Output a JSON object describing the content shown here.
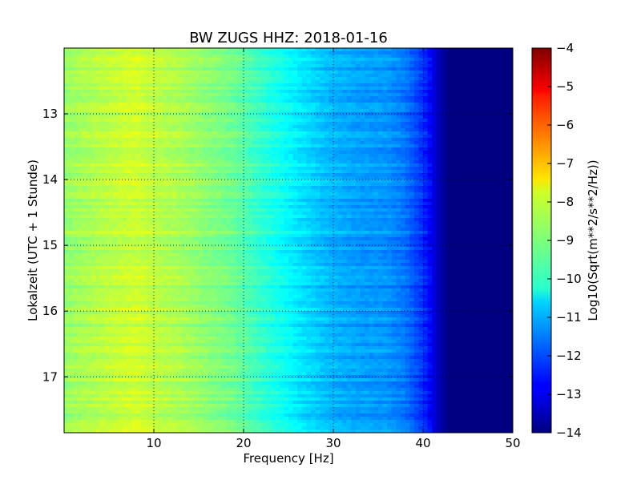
{
  "chart_data": {
    "type": "heatmap",
    "title": "BW ZUGS HHZ: 2018-01-16",
    "xlabel": "Frequency [Hz]",
    "ylabel": "Lokalzeit (UTC + 1 Stunde)",
    "colorbar_label": "Log10(Sqrt(m**2/s**2/Hz))",
    "xlim": [
      0,
      50
    ],
    "ylim": [
      12.0,
      17.85
    ],
    "y_inverted": true,
    "clim": [
      -14,
      -4
    ],
    "colormap": "jet",
    "grid": true,
    "x_ticks": [
      10,
      20,
      30,
      40,
      50
    ],
    "x_tick_labels": [
      "10",
      "20",
      "30",
      "40",
      "50"
    ],
    "y_ticks": [
      13,
      14,
      15,
      16,
      17
    ],
    "y_tick_labels": [
      "13",
      "14",
      "15",
      "16",
      "17"
    ],
    "colorbar_ticks": [
      -4,
      -5,
      -6,
      -7,
      -8,
      -9,
      -10,
      -11,
      -12,
      -13,
      -14
    ],
    "colorbar_tick_labels": [
      "−4",
      "−5",
      "−6",
      "−7",
      "−8",
      "−9",
      "−10",
      "−11",
      "−12",
      "−13",
      "−14"
    ],
    "frequency_profile": {
      "frequency_hz": [
        0,
        2,
        5,
        8,
        10,
        13,
        16,
        19,
        21,
        24,
        27,
        30,
        33,
        36,
        38,
        40,
        41,
        42,
        43,
        50
      ],
      "log10_amplitude": [
        -8.8,
        -8.6,
        -8.4,
        -8.2,
        -8.4,
        -8.6,
        -8.9,
        -9.2,
        -9.6,
        -10.1,
        -10.6,
        -11.0,
        -11.2,
        -11.3,
        -11.6,
        -12.3,
        -12.9,
        -13.6,
        -14.0,
        -14.0
      ]
    }
  }
}
